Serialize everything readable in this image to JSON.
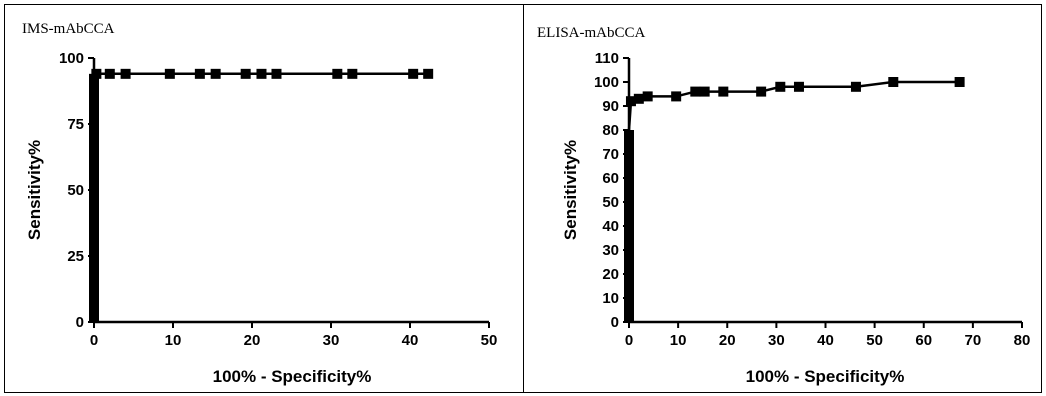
{
  "chart_data": [
    {
      "type": "line",
      "title": "IMS-mAbCCA",
      "xlabel": "100% - Specificity%",
      "ylabel": "Sensitivity%",
      "xlim": [
        0,
        50
      ],
      "ylim": [
        0,
        100
      ],
      "xticks": [
        "0",
        "10",
        "20",
        "30",
        "40",
        "50"
      ],
      "yticks": [
        "0",
        "25",
        "50",
        "75",
        "100"
      ],
      "grid": false,
      "series": [
        {
          "x": [
            0,
            0,
            0,
            0,
            0,
            0.3,
            2,
            4,
            9.6,
            13.4,
            15.4,
            19.2,
            21.2,
            23.1,
            30.8,
            32.7,
            40.4,
            42.3
          ],
          "y": [
            0,
            25,
            50,
            75,
            94,
            94,
            94,
            94,
            94,
            94,
            94,
            94,
            94,
            94,
            94,
            94,
            94,
            94
          ],
          "markers": [
            [
              0,
              92
            ],
            [
              0.3,
              94
            ],
            [
              2,
              94
            ],
            [
              4,
              94
            ],
            [
              9.6,
              94
            ],
            [
              13.4,
              94
            ],
            [
              15.4,
              94
            ],
            [
              19.2,
              94
            ],
            [
              21.2,
              94
            ],
            [
              23.1,
              94
            ],
            [
              30.8,
              94
            ],
            [
              32.7,
              94
            ],
            [
              40.4,
              94
            ],
            [
              42.3,
              94
            ]
          ]
        }
      ]
    },
    {
      "type": "line",
      "title": "ELISA-mAbCCA",
      "xlabel": "100% - Specificity%",
      "ylabel": "Sensitivity%",
      "xlim": [
        0,
        80
      ],
      "ylim": [
        0,
        110
      ],
      "xticks": [
        "0",
        "10",
        "20",
        "30",
        "40",
        "50",
        "60",
        "70",
        "80"
      ],
      "yticks": [
        "0",
        "10",
        "20",
        "30",
        "40",
        "50",
        "60",
        "70",
        "80",
        "90",
        "100",
        "110"
      ],
      "grid": false,
      "series": [
        {
          "x": [
            0,
            0,
            0,
            0,
            0,
            0,
            0,
            0,
            0,
            0,
            0,
            0,
            0,
            0.4,
            2,
            3.8,
            9.6,
            13.5,
            15.4,
            19.2,
            26.9,
            30.8,
            34.6,
            46.2,
            53.8,
            67.3
          ],
          "y": [
            0,
            2,
            4,
            6,
            8,
            10,
            12,
            14,
            16,
            25,
            36,
            52,
            80,
            92,
            93,
            94,
            94,
            96,
            96,
            96,
            96,
            98,
            98,
            98,
            100,
            100
          ],
          "markers": [
            [
              0,
              2
            ],
            [
              0,
              6
            ],
            [
              0,
              10
            ],
            [
              0,
              14
            ],
            [
              0,
              25
            ],
            [
              0,
              36
            ],
            [
              0,
              44
            ],
            [
              0,
              52
            ],
            [
              0,
              60
            ],
            [
              0,
              68
            ],
            [
              0,
              76
            ],
            [
              0.4,
              92
            ],
            [
              2,
              93
            ],
            [
              3.8,
              94
            ],
            [
              9.6,
              94
            ],
            [
              13.5,
              96
            ],
            [
              15.4,
              96
            ],
            [
              19.2,
              96
            ],
            [
              26.9,
              96
            ],
            [
              30.8,
              98
            ],
            [
              34.6,
              98
            ],
            [
              46.2,
              98
            ],
            [
              53.8,
              100
            ],
            [
              67.3,
              100
            ]
          ]
        }
      ]
    }
  ]
}
